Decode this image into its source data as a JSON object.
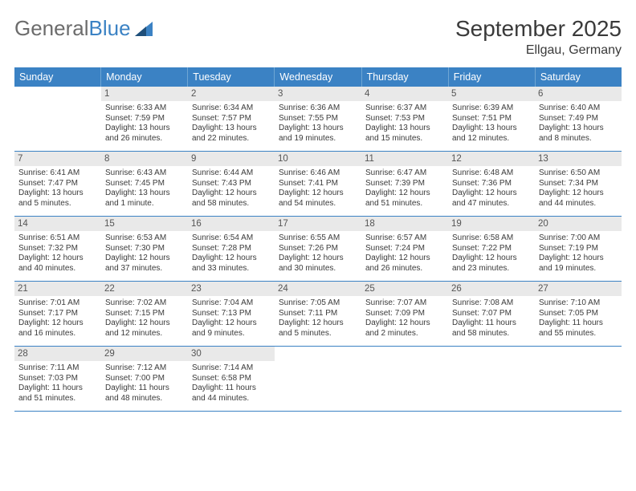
{
  "brand": {
    "part1": "General",
    "part2": "Blue"
  },
  "title": "September 2025",
  "location": "Ellgau, Germany",
  "colors": {
    "header_bg": "#3b82c4",
    "header_text": "#ffffff",
    "daynum_bg": "#e9e9e9",
    "text": "#3a3a3a",
    "rule": "#3b82c4"
  },
  "day_names": [
    "Sunday",
    "Monday",
    "Tuesday",
    "Wednesday",
    "Thursday",
    "Friday",
    "Saturday"
  ],
  "weeks": [
    [
      null,
      {
        "n": "1",
        "sr": "Sunrise: 6:33 AM",
        "ss": "Sunset: 7:59 PM",
        "d1": "Daylight: 13 hours",
        "d2": "and 26 minutes."
      },
      {
        "n": "2",
        "sr": "Sunrise: 6:34 AM",
        "ss": "Sunset: 7:57 PM",
        "d1": "Daylight: 13 hours",
        "d2": "and 22 minutes."
      },
      {
        "n": "3",
        "sr": "Sunrise: 6:36 AM",
        "ss": "Sunset: 7:55 PM",
        "d1": "Daylight: 13 hours",
        "d2": "and 19 minutes."
      },
      {
        "n": "4",
        "sr": "Sunrise: 6:37 AM",
        "ss": "Sunset: 7:53 PM",
        "d1": "Daylight: 13 hours",
        "d2": "and 15 minutes."
      },
      {
        "n": "5",
        "sr": "Sunrise: 6:39 AM",
        "ss": "Sunset: 7:51 PM",
        "d1": "Daylight: 13 hours",
        "d2": "and 12 minutes."
      },
      {
        "n": "6",
        "sr": "Sunrise: 6:40 AM",
        "ss": "Sunset: 7:49 PM",
        "d1": "Daylight: 13 hours",
        "d2": "and 8 minutes."
      }
    ],
    [
      {
        "n": "7",
        "sr": "Sunrise: 6:41 AM",
        "ss": "Sunset: 7:47 PM",
        "d1": "Daylight: 13 hours",
        "d2": "and 5 minutes."
      },
      {
        "n": "8",
        "sr": "Sunrise: 6:43 AM",
        "ss": "Sunset: 7:45 PM",
        "d1": "Daylight: 13 hours",
        "d2": "and 1 minute."
      },
      {
        "n": "9",
        "sr": "Sunrise: 6:44 AM",
        "ss": "Sunset: 7:43 PM",
        "d1": "Daylight: 12 hours",
        "d2": "and 58 minutes."
      },
      {
        "n": "10",
        "sr": "Sunrise: 6:46 AM",
        "ss": "Sunset: 7:41 PM",
        "d1": "Daylight: 12 hours",
        "d2": "and 54 minutes."
      },
      {
        "n": "11",
        "sr": "Sunrise: 6:47 AM",
        "ss": "Sunset: 7:39 PM",
        "d1": "Daylight: 12 hours",
        "d2": "and 51 minutes."
      },
      {
        "n": "12",
        "sr": "Sunrise: 6:48 AM",
        "ss": "Sunset: 7:36 PM",
        "d1": "Daylight: 12 hours",
        "d2": "and 47 minutes."
      },
      {
        "n": "13",
        "sr": "Sunrise: 6:50 AM",
        "ss": "Sunset: 7:34 PM",
        "d1": "Daylight: 12 hours",
        "d2": "and 44 minutes."
      }
    ],
    [
      {
        "n": "14",
        "sr": "Sunrise: 6:51 AM",
        "ss": "Sunset: 7:32 PM",
        "d1": "Daylight: 12 hours",
        "d2": "and 40 minutes."
      },
      {
        "n": "15",
        "sr": "Sunrise: 6:53 AM",
        "ss": "Sunset: 7:30 PM",
        "d1": "Daylight: 12 hours",
        "d2": "and 37 minutes."
      },
      {
        "n": "16",
        "sr": "Sunrise: 6:54 AM",
        "ss": "Sunset: 7:28 PM",
        "d1": "Daylight: 12 hours",
        "d2": "and 33 minutes."
      },
      {
        "n": "17",
        "sr": "Sunrise: 6:55 AM",
        "ss": "Sunset: 7:26 PM",
        "d1": "Daylight: 12 hours",
        "d2": "and 30 minutes."
      },
      {
        "n": "18",
        "sr": "Sunrise: 6:57 AM",
        "ss": "Sunset: 7:24 PM",
        "d1": "Daylight: 12 hours",
        "d2": "and 26 minutes."
      },
      {
        "n": "19",
        "sr": "Sunrise: 6:58 AM",
        "ss": "Sunset: 7:22 PM",
        "d1": "Daylight: 12 hours",
        "d2": "and 23 minutes."
      },
      {
        "n": "20",
        "sr": "Sunrise: 7:00 AM",
        "ss": "Sunset: 7:19 PM",
        "d1": "Daylight: 12 hours",
        "d2": "and 19 minutes."
      }
    ],
    [
      {
        "n": "21",
        "sr": "Sunrise: 7:01 AM",
        "ss": "Sunset: 7:17 PM",
        "d1": "Daylight: 12 hours",
        "d2": "and 16 minutes."
      },
      {
        "n": "22",
        "sr": "Sunrise: 7:02 AM",
        "ss": "Sunset: 7:15 PM",
        "d1": "Daylight: 12 hours",
        "d2": "and 12 minutes."
      },
      {
        "n": "23",
        "sr": "Sunrise: 7:04 AM",
        "ss": "Sunset: 7:13 PM",
        "d1": "Daylight: 12 hours",
        "d2": "and 9 minutes."
      },
      {
        "n": "24",
        "sr": "Sunrise: 7:05 AM",
        "ss": "Sunset: 7:11 PM",
        "d1": "Daylight: 12 hours",
        "d2": "and 5 minutes."
      },
      {
        "n": "25",
        "sr": "Sunrise: 7:07 AM",
        "ss": "Sunset: 7:09 PM",
        "d1": "Daylight: 12 hours",
        "d2": "and 2 minutes."
      },
      {
        "n": "26",
        "sr": "Sunrise: 7:08 AM",
        "ss": "Sunset: 7:07 PM",
        "d1": "Daylight: 11 hours",
        "d2": "and 58 minutes."
      },
      {
        "n": "27",
        "sr": "Sunrise: 7:10 AM",
        "ss": "Sunset: 7:05 PM",
        "d1": "Daylight: 11 hours",
        "d2": "and 55 minutes."
      }
    ],
    [
      {
        "n": "28",
        "sr": "Sunrise: 7:11 AM",
        "ss": "Sunset: 7:03 PM",
        "d1": "Daylight: 11 hours",
        "d2": "and 51 minutes."
      },
      {
        "n": "29",
        "sr": "Sunrise: 7:12 AM",
        "ss": "Sunset: 7:00 PM",
        "d1": "Daylight: 11 hours",
        "d2": "and 48 minutes."
      },
      {
        "n": "30",
        "sr": "Sunrise: 7:14 AM",
        "ss": "Sunset: 6:58 PM",
        "d1": "Daylight: 11 hours",
        "d2": "and 44 minutes."
      },
      null,
      null,
      null,
      null
    ]
  ]
}
